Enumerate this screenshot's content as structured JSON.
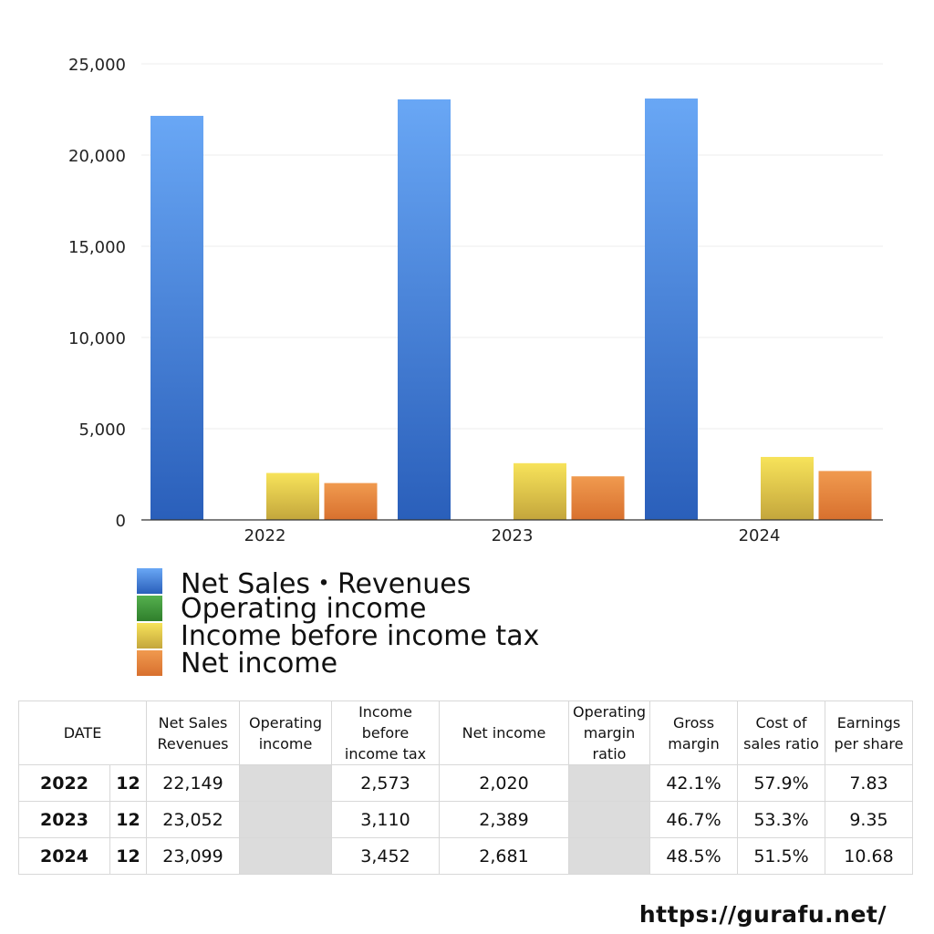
{
  "chart_data": {
    "type": "bar",
    "categories": [
      "2022",
      "2023",
      "2024"
    ],
    "ylim": [
      0,
      25000
    ],
    "yticks": [
      0,
      5000,
      10000,
      15000,
      20000,
      25000
    ],
    "ytick_labels": [
      "0",
      "5,000",
      "10,000",
      "15,000",
      "20,000",
      "25,000"
    ],
    "grid": true,
    "series": [
      {
        "name": "Net Sales・Revenues",
        "values": [
          22149,
          23052,
          23099
        ],
        "color": "#3d7fdd"
      },
      {
        "name": "Operating income",
        "values": [
          null,
          null,
          null
        ],
        "color": "#3f9a3b"
      },
      {
        "name": "Income before income tax",
        "values": [
          2573,
          3110,
          3452
        ],
        "color": "#e8cf45"
      },
      {
        "name": "Net income",
        "values": [
          2020,
          2389,
          2681
        ],
        "color": "#e0803a"
      }
    ],
    "legend_position": "bottom-left"
  },
  "table": {
    "headers": {
      "date": "DATE",
      "sales_l1": "Net Sales",
      "sales_l2": "Revenues",
      "op_l1": "Operating",
      "op_l2": "income",
      "ibt_l1": "Income",
      "ibt_l2": "before",
      "ibt_l3": "income tax",
      "net": "Net income",
      "opm_l1": "Operating",
      "opm_l2": "margin",
      "opm_l3": "ratio",
      "gm_l1": "Gross",
      "gm_l2": "margin",
      "cos_l1": "Cost of",
      "cos_l2": "sales ratio",
      "eps_l1": "Earnings",
      "eps_l2": "per share"
    },
    "rows": [
      {
        "year": "2022",
        "month": "12",
        "sales": "22,149",
        "ibt": "2,573",
        "net": "2,020",
        "gross": "42.1%",
        "cos": "57.9%",
        "eps": "7.83"
      },
      {
        "year": "2023",
        "month": "12",
        "sales": "23,052",
        "ibt": "3,110",
        "net": "2,389",
        "gross": "46.7%",
        "cos": "53.3%",
        "eps": "9.35"
      },
      {
        "year": "2024",
        "month": "12",
        "sales": "23,099",
        "ibt": "3,452",
        "net": "2,681",
        "gross": "48.5%",
        "cos": "51.5%",
        "eps": "10.68"
      }
    ]
  },
  "footer": {
    "url": "https://gurafu.net/"
  }
}
